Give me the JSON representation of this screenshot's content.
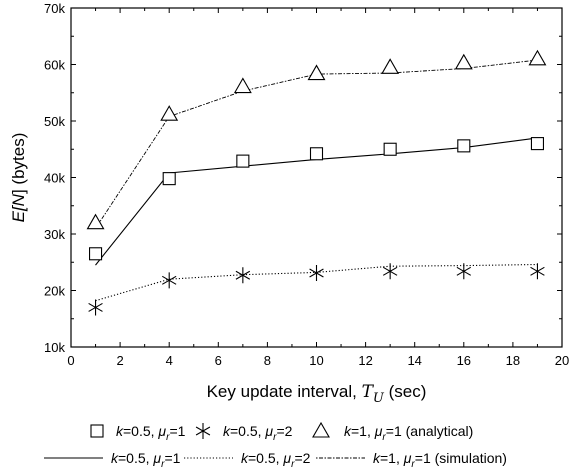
{
  "chart_data": {
    "type": "line",
    "xlabel": "Key update interval, T_U (sec)",
    "xlabel_parts": {
      "main": "Key update interval, ",
      "symbol": "T",
      "sub": "U",
      "unit": " (sec)"
    },
    "ylabel": "E[N] (bytes)",
    "ylabel_parts": {
      "pre": "E[",
      "var": "N",
      "post": "] (bytes)"
    },
    "xlim": [
      0,
      20
    ],
    "ylim": [
      10000,
      70000
    ],
    "x_ticks": [
      0,
      2,
      4,
      6,
      8,
      10,
      12,
      14,
      16,
      18,
      20
    ],
    "y_ticks": [
      {
        "value": 10000,
        "label": "10k"
      },
      {
        "value": 20000,
        "label": "20k"
      },
      {
        "value": 30000,
        "label": "30k"
      },
      {
        "value": 40000,
        "label": "40k"
      },
      {
        "value": 50000,
        "label": "50k"
      },
      {
        "value": 60000,
        "label": "60k"
      },
      {
        "value": 70000,
        "label": "70k"
      }
    ],
    "grid": false,
    "legend_position": "bottom",
    "x": [
      1,
      4,
      7,
      10,
      13,
      16,
      19
    ],
    "series": [
      {
        "name": "k=0.5, μr=1 (analytical)",
        "marker": "square",
        "values": [
          26500,
          39800,
          42900,
          44200,
          45000,
          45600,
          46000
        ]
      },
      {
        "name": "k=0.5, μr=2 (analytical)",
        "marker": "asterisk",
        "values": [
          17000,
          21800,
          22700,
          23100,
          23400,
          23400,
          23400
        ]
      },
      {
        "name": "k=1, μr=1 (analytical)",
        "marker": "triangle",
        "values": [
          32000,
          51200,
          56100,
          58400,
          59500,
          60300,
          61000
        ]
      },
      {
        "name": "k=0.5, μr=1 (simulation)",
        "line": "solid",
        "values": [
          24500,
          40800,
          42000,
          43200,
          44200,
          45300,
          47000
        ]
      },
      {
        "name": "k=0.5, μr=2 (simulation)",
        "line": "dotted",
        "values": [
          18200,
          22000,
          22800,
          23200,
          24300,
          24400,
          24600
        ]
      },
      {
        "name": "k=1, μr=1 (simulation)",
        "line": "dashdot",
        "values": [
          31000,
          50800,
          55300,
          58300,
          58500,
          59300,
          60800
        ]
      }
    ],
    "legend": {
      "row1": [
        {
          "k": "k",
          "kval": "=0.5, ",
          "mu": "μ",
          "sub": "r",
          "val": "=1",
          "suffix": ""
        },
        {
          "k": "k",
          "kval": "=0.5, ",
          "mu": "μ",
          "sub": "r",
          "val": "=2",
          "suffix": ""
        },
        {
          "k": "k",
          "kval": "=1, ",
          "mu": "μ",
          "sub": "r",
          "val": "=1",
          "suffix": " (analytical)"
        }
      ],
      "row2": [
        {
          "k": "k",
          "kval": "=0.5, ",
          "mu": "μ",
          "sub": "r",
          "val": "=1",
          "suffix": ""
        },
        {
          "k": "k",
          "kval": "=0.5, ",
          "mu": "μ",
          "sub": "r",
          "val": "=2",
          "suffix": ""
        },
        {
          "k": "k",
          "kval": "=1, ",
          "mu": "μ",
          "sub": "r",
          "val": "=1",
          "suffix": " (simulation)"
        }
      ]
    }
  }
}
